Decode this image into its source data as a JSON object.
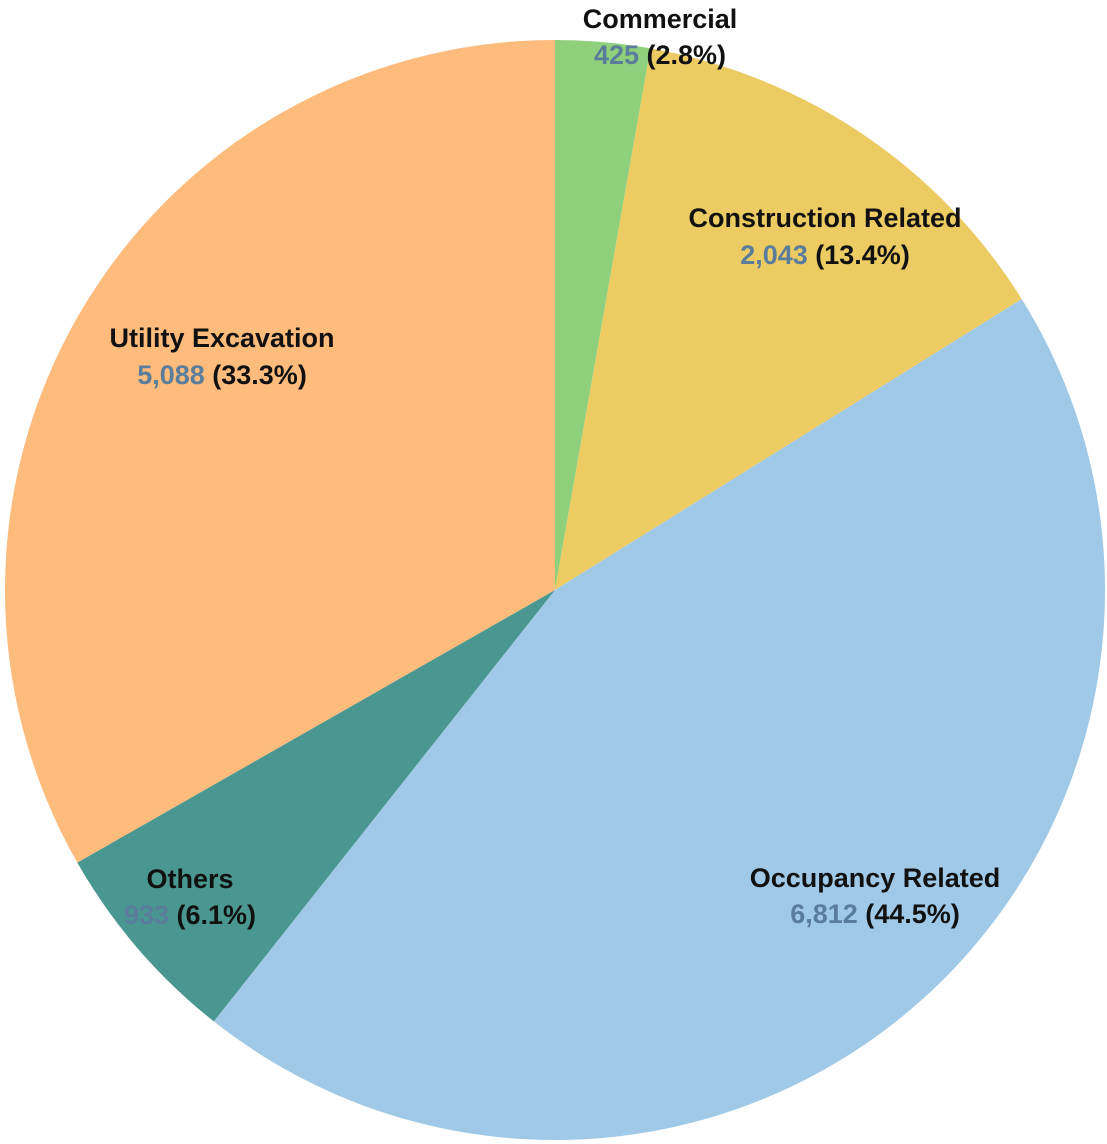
{
  "chart_data": {
    "type": "pie",
    "start": "top",
    "direction": "clockwise",
    "value_color": "#5b7d9c",
    "slices": [
      {
        "name": "Commercial",
        "value": 425,
        "value_label": "425",
        "pct_label": "(2.8%)",
        "color": "#8fd07c"
      },
      {
        "name": "Construction Related",
        "value": 2043,
        "value_label": "2,043",
        "pct_label": "(13.4%)",
        "color": "#edcb63"
      },
      {
        "name": "Occupancy Related",
        "value": 6812,
        "value_label": "6,812",
        "pct_label": "(44.5%)",
        "color": "#a0c9e7"
      },
      {
        "name": "Others",
        "value": 933,
        "value_label": "933",
        "pct_label": "(6.1%)",
        "color": "#4a9690"
      },
      {
        "name": "Utility Excavation",
        "value": 5088,
        "value_label": "5,088",
        "pct_label": "(33.3%)",
        "color": "#fdbb7c"
      }
    ]
  }
}
